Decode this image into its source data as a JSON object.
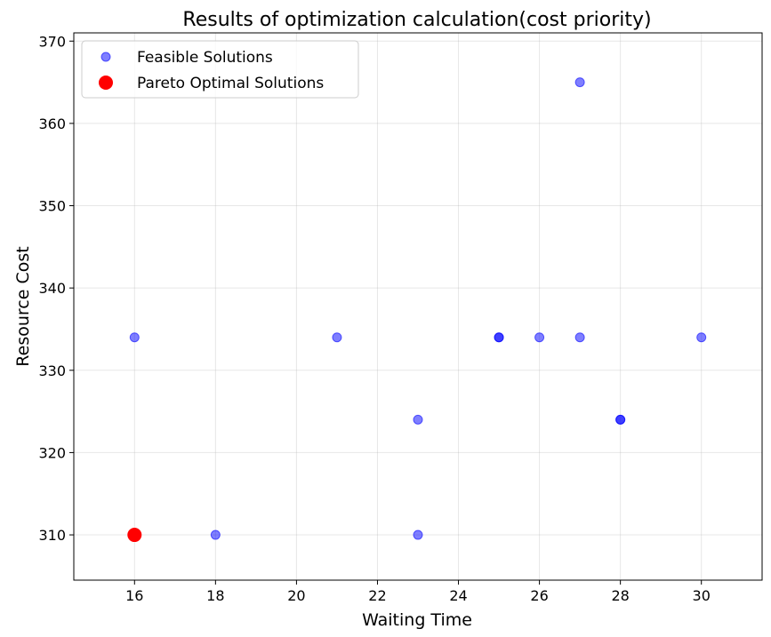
{
  "chart_data": {
    "type": "scatter",
    "title": "Results of optimization calculation(cost priority)",
    "xlabel": "Waiting Time",
    "ylabel": "Resource Cost",
    "xlim": [
      14.5,
      31.5
    ],
    "ylim": [
      304.5,
      371
    ],
    "xticks": [
      16,
      18,
      20,
      22,
      24,
      26,
      28,
      30
    ],
    "yticks": [
      310,
      320,
      330,
      340,
      350,
      360,
      370
    ],
    "grid": true,
    "legend_position": "top-left",
    "series": [
      {
        "name": "Feasible Solutions",
        "color": "#0000ff",
        "marker": "small-circle",
        "points": [
          {
            "x": 16,
            "y": 334
          },
          {
            "x": 18,
            "y": 310
          },
          {
            "x": 21,
            "y": 334
          },
          {
            "x": 23,
            "y": 324
          },
          {
            "x": 23,
            "y": 310
          },
          {
            "x": 25,
            "y": 334
          },
          {
            "x": 25,
            "y": 334
          },
          {
            "x": 26,
            "y": 334
          },
          {
            "x": 27,
            "y": 365
          },
          {
            "x": 27,
            "y": 334
          },
          {
            "x": 28,
            "y": 324
          },
          {
            "x": 28,
            "y": 324
          },
          {
            "x": 30,
            "y": 334
          }
        ]
      },
      {
        "name": "Pareto Optimal Solutions",
        "color": "#ff0000",
        "marker": "large-circle",
        "points": [
          {
            "x": 16,
            "y": 310
          }
        ]
      }
    ]
  }
}
